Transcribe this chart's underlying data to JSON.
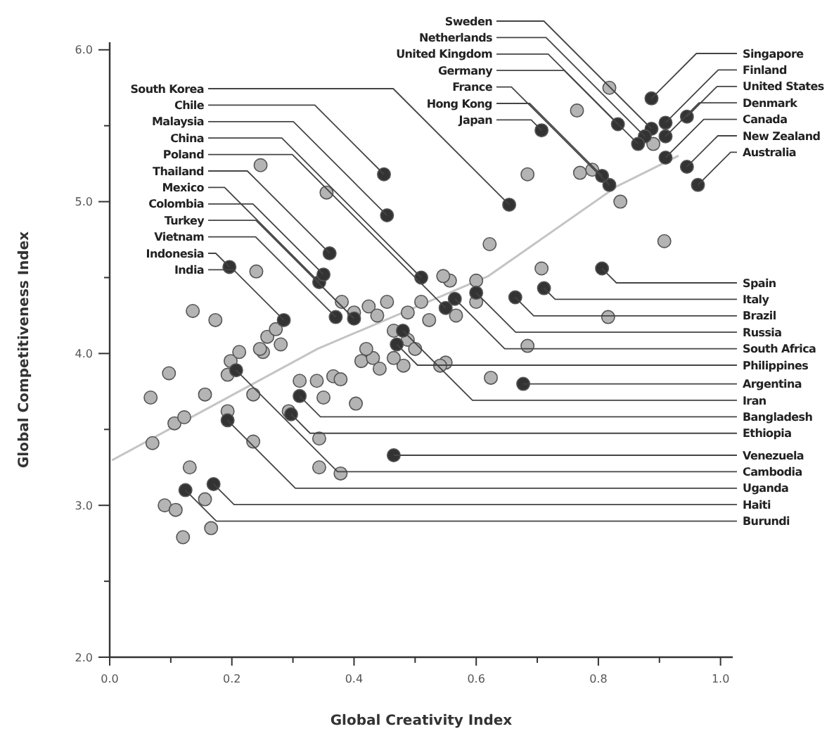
{
  "chart_data": {
    "type": "scatter",
    "xlabel": "Global Creativity Index",
    "ylabel": "Global Competitiveness Index",
    "xlim": [
      0,
      1.02
    ],
    "ylim": [
      2,
      6.05
    ],
    "xticks": [
      {
        "value": 0,
        "label": "0.0"
      },
      {
        "value": 0.1,
        "label": null
      },
      {
        "value": 0.2,
        "label": "0.2"
      },
      {
        "value": 0.3,
        "label": null
      },
      {
        "value": 0.4,
        "label": "0.4"
      },
      {
        "value": 0.5,
        "label": null
      },
      {
        "value": 0.6,
        "label": "0.6"
      },
      {
        "value": 0.7,
        "label": null
      },
      {
        "value": 0.8,
        "label": "0.8"
      },
      {
        "value": 0.9,
        "label": null
      },
      {
        "value": 1,
        "label": "1.0"
      }
    ],
    "yticks": [
      {
        "value": 2,
        "label": "2.0"
      },
      {
        "value": 2.5,
        "label": null
      },
      {
        "value": 3,
        "label": "3.0"
      },
      {
        "value": 3.5,
        "label": null
      },
      {
        "value": 4,
        "label": "4.0"
      },
      {
        "value": 4.5,
        "label": null
      },
      {
        "value": 5,
        "label": "5.0"
      },
      {
        "value": 5.5,
        "label": null
      },
      {
        "value": 6,
        "label": "6.0"
      }
    ],
    "grid": false,
    "marker": "circle",
    "series": [
      {
        "type": "line",
        "marker": "none",
        "color": "#c4c4c4",
        "x": [
          0.005,
          0.34,
          0.62,
          0.83,
          0.93
        ],
        "values": [
          3.3,
          4.03,
          4.51,
          5.1,
          5.3
        ]
      },
      {
        "color": "#b4b4b4",
        "x": [
          0.247,
          0.355,
          0.684,
          0.77,
          0.79,
          0.836,
          0.908,
          0.765,
          0.818,
          0.89,
          0.622,
          0.488,
          0.707,
          0.6,
          0.6,
          0.557,
          0.684,
          0.816,
          0.55,
          0.624,
          0.097,
          0.067,
          0.156,
          0.106,
          0.122,
          0.07,
          0.193,
          0.235,
          0.198,
          0.193,
          0.235,
          0.131,
          0.09,
          0.108,
          0.156,
          0.166,
          0.12,
          0.311,
          0.339,
          0.366,
          0.378,
          0.35,
          0.403,
          0.343,
          0.343,
          0.378,
          0.293,
          0.412,
          0.431,
          0.481,
          0.251,
          0.38,
          0.4,
          0.424,
          0.438,
          0.454,
          0.465,
          0.488,
          0.51,
          0.523,
          0.5,
          0.465,
          0.541,
          0.442,
          0.42,
          0.258,
          0.246,
          0.272,
          0.28,
          0.212,
          0.136,
          0.173,
          0.24,
          0.546,
          0.567
        ],
        "values": [
          5.24,
          5.06,
          5.18,
          5.19,
          5.21,
          5.0,
          4.74,
          5.6,
          5.75,
          5.38,
          4.72,
          4.09,
          4.56,
          4.48,
          4.34,
          4.48,
          4.05,
          4.24,
          3.94,
          3.84,
          3.87,
          3.71,
          3.73,
          3.54,
          3.58,
          3.41,
          3.62,
          3.73,
          3.95,
          3.86,
          3.42,
          3.25,
          3.0,
          2.97,
          3.04,
          2.85,
          2.79,
          3.82,
          3.82,
          3.85,
          3.83,
          3.71,
          3.67,
          3.44,
          3.25,
          3.21,
          3.62,
          3.95,
          3.97,
          3.92,
          4.01,
          4.34,
          4.27,
          4.31,
          4.25,
          4.34,
          4.15,
          4.27,
          4.34,
          4.22,
          4.03,
          3.97,
          3.92,
          3.9,
          4.03,
          4.11,
          4.03,
          4.16,
          4.06,
          4.01,
          4.28,
          4.22,
          4.54,
          4.51,
          4.25
        ]
      },
      {
        "color": "#333333",
        "x": [
          0.887,
          0.876,
          0.865,
          0.832,
          0.818,
          0.806,
          0.707,
          0.654,
          0.449,
          0.454,
          0.51,
          0.55,
          0.36,
          0.343,
          0.35,
          0.4,
          0.37,
          0.196,
          0.285,
          0.887,
          0.91,
          0.945,
          0.91,
          0.91,
          0.945,
          0.963,
          0.806,
          0.711,
          0.664,
          0.6,
          0.565,
          0.47,
          0.677,
          0.48,
          0.311,
          0.297,
          0.465,
          0.207,
          0.193,
          0.17,
          0.124
        ],
        "values": [
          5.48,
          5.43,
          5.38,
          5.51,
          5.11,
          5.17,
          5.47,
          4.98,
          5.18,
          4.91,
          4.5,
          4.3,
          4.66,
          4.47,
          4.52,
          4.23,
          4.24,
          4.57,
          4.22,
          5.68,
          5.52,
          5.56,
          5.43,
          5.29,
          5.23,
          5.11,
          4.56,
          4.43,
          4.37,
          4.4,
          4.36,
          4.06,
          3.8,
          4.15,
          3.72,
          3.6,
          3.33,
          3.89,
          3.56,
          3.14,
          3.1
        ]
      }
    ],
    "annotations": [
      {
        "text": "Sweden",
        "x": 0.887,
        "y": 5.48
      },
      {
        "text": "Netherlands",
        "x": 0.876,
        "y": 5.43
      },
      {
        "text": "United Kingdom",
        "x": 0.865,
        "y": 5.38
      },
      {
        "text": "Germany",
        "x": 0.832,
        "y": 5.51
      },
      {
        "text": "France",
        "x": 0.818,
        "y": 5.11
      },
      {
        "text": "Hong Kong",
        "x": 0.806,
        "y": 5.17
      },
      {
        "text": "Japan",
        "x": 0.707,
        "y": 5.47
      },
      {
        "text": "South Korea",
        "x": 0.654,
        "y": 4.98
      },
      {
        "text": "Chile",
        "x": 0.449,
        "y": 5.18
      },
      {
        "text": "Malaysia",
        "x": 0.454,
        "y": 4.91
      },
      {
        "text": "China",
        "x": 0.51,
        "y": 4.5
      },
      {
        "text": "Poland",
        "x": 0.55,
        "y": 4.3
      },
      {
        "text": "Thailand",
        "x": 0.36,
        "y": 4.66
      },
      {
        "text": "Mexico",
        "x": 0.343,
        "y": 4.47
      },
      {
        "text": "Colombia",
        "x": 0.35,
        "y": 4.52
      },
      {
        "text": "Turkey",
        "x": 0.4,
        "y": 4.23
      },
      {
        "text": "Vietnam",
        "x": 0.37,
        "y": 4.24
      },
      {
        "text": "Indonesia",
        "x": 0.196,
        "y": 4.57
      },
      {
        "text": "India",
        "x": 0.285,
        "y": 4.22
      },
      {
        "text": "Singapore",
        "x": 0.887,
        "y": 5.68
      },
      {
        "text": "Finland",
        "x": 0.91,
        "y": 5.52
      },
      {
        "text": "United States",
        "x": 0.945,
        "y": 5.56
      },
      {
        "text": "Denmark",
        "x": 0.91,
        "y": 5.43
      },
      {
        "text": "Canada",
        "x": 0.91,
        "y": 5.29
      },
      {
        "text": "New Zealand",
        "x": 0.945,
        "y": 5.23
      },
      {
        "text": "Australia",
        "x": 0.963,
        "y": 5.11
      },
      {
        "text": "Spain",
        "x": 0.806,
        "y": 4.56
      },
      {
        "text": "Italy",
        "x": 0.711,
        "y": 4.43
      },
      {
        "text": "Brazil",
        "x": 0.664,
        "y": 4.37
      },
      {
        "text": "Russia",
        "x": 0.6,
        "y": 4.4
      },
      {
        "text": "South Africa",
        "x": 0.565,
        "y": 4.36
      },
      {
        "text": "Philippines",
        "x": 0.47,
        "y": 4.06
      },
      {
        "text": "Argentina",
        "x": 0.677,
        "y": 3.8
      },
      {
        "text": "Iran",
        "x": 0.48,
        "y": 4.15
      },
      {
        "text": "Bangladesh",
        "x": 0.311,
        "y": 3.72
      },
      {
        "text": "Ethiopia",
        "x": 0.297,
        "y": 3.6
      },
      {
        "text": "Venezuela",
        "x": 0.465,
        "y": 3.33
      },
      {
        "text": "Cambodia",
        "x": 0.207,
        "y": 3.89
      },
      {
        "text": "Uganda",
        "x": 0.193,
        "y": 3.56
      },
      {
        "text": "Haiti",
        "x": 0.17,
        "y": 3.14
      },
      {
        "text": "Burundi",
        "x": 0.124,
        "y": 3.1
      }
    ]
  }
}
